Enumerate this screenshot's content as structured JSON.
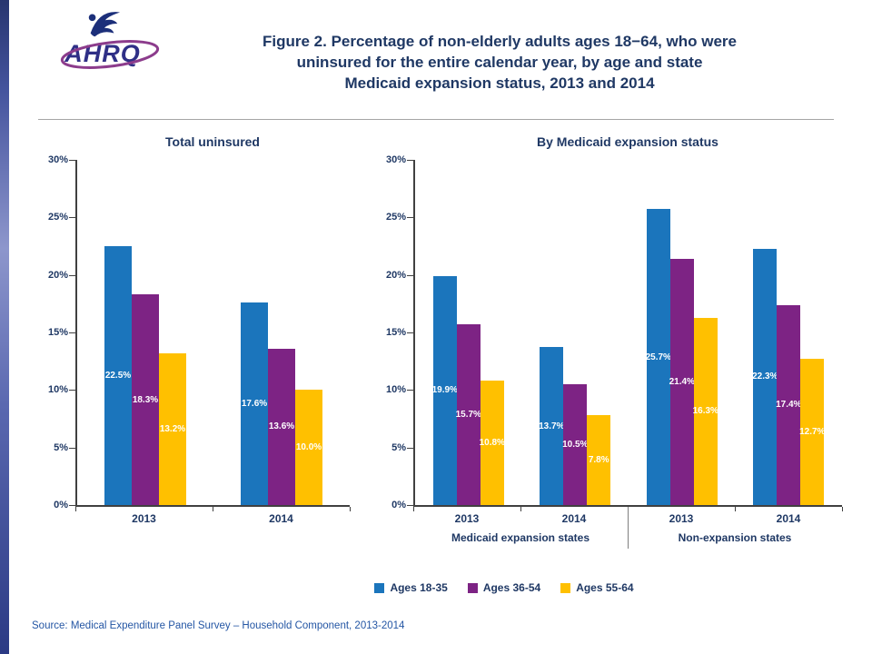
{
  "page": {
    "logo_text": "AHRQ",
    "title_lines": [
      "Figure 2. Percentage of non-elderly adults ages 18−64, who were",
      "uninsured for the entire calendar year, by age and state",
      "Medicaid expansion status, 2013 and 2014"
    ],
    "source": "Source: Medical Expenditure Panel Survey – Household Component, 2013-2014"
  },
  "colors": {
    "blue": "#1B75BC",
    "purple": "#7D2384",
    "gold": "#FFC000",
    "heading_text": "#1F3864",
    "source_text": "#2456A4"
  },
  "legend": {
    "items": [
      {
        "label": "Ages 18-35",
        "color": "#1B75BC"
      },
      {
        "label": "Ages 36-54",
        "color": "#7D2384"
      },
      {
        "label": "Ages 55-64",
        "color": "#FFC000"
      }
    ]
  },
  "chart_data": [
    {
      "type": "bar",
      "title": "Total uninsured",
      "categories": [
        "2013",
        "2014"
      ],
      "series": [
        {
          "name": "Ages 18-35",
          "color": "#1B75BC",
          "values": [
            22.5,
            17.6
          ]
        },
        {
          "name": "Ages 36-54",
          "color": "#7D2384",
          "values": [
            18.3,
            13.6
          ]
        },
        {
          "name": "Ages 55-64",
          "color": "#FFC000",
          "values": [
            13.2,
            10.0
          ]
        }
      ],
      "ylim": [
        0,
        30
      ],
      "ytick_step": 5,
      "ytick_suffix": "%",
      "data_labels": true,
      "data_label_suffix": "%",
      "grid": false,
      "legend_position": "shared-bottom"
    },
    {
      "type": "bar",
      "title": "By Medicaid expansion status",
      "categories": [
        "2013",
        "2014",
        "2013",
        "2014"
      ],
      "group_labels": [
        "Medicaid expansion states",
        "Non-expansion states"
      ],
      "series": [
        {
          "name": "Ages 18-35",
          "color": "#1B75BC",
          "values": [
            19.9,
            13.7,
            25.7,
            22.3
          ]
        },
        {
          "name": "Ages 36-54",
          "color": "#7D2384",
          "values": [
            15.7,
            10.5,
            21.4,
            17.4
          ]
        },
        {
          "name": "Ages 55-64",
          "color": "#FFC000",
          "values": [
            10.8,
            7.8,
            16.3,
            12.7
          ]
        }
      ],
      "ylim": [
        0,
        30
      ],
      "ytick_step": 5,
      "ytick_suffix": "%",
      "data_labels": true,
      "data_label_suffix": "%",
      "grid": false,
      "legend_position": "shared-bottom"
    }
  ]
}
